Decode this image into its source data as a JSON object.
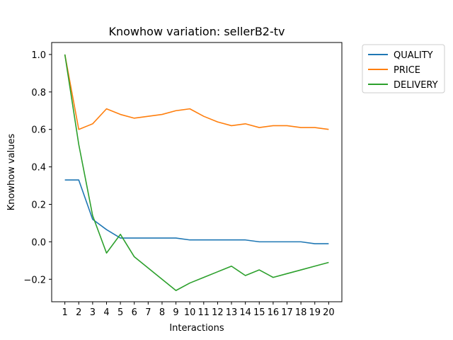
{
  "chart_data": {
    "type": "line",
    "title": "Knowhow variation: sellerB2-tv",
    "xlabel": "Interactions",
    "ylabel": "Knowhow values",
    "x": [
      1,
      2,
      3,
      4,
      5,
      6,
      7,
      8,
      9,
      10,
      11,
      12,
      13,
      14,
      15,
      16,
      17,
      18,
      19,
      20
    ],
    "xlim": [
      0.05,
      20.95
    ],
    "ylim": [
      -0.32,
      1.064
    ],
    "yticks": [
      -0.2,
      0.0,
      0.2,
      0.4,
      0.6,
      0.8,
      1.0
    ],
    "ytick_labels": [
      "−0.2",
      "0.0",
      "0.2",
      "0.4",
      "0.6",
      "0.8",
      "1.0"
    ],
    "grid": false,
    "legend_position": "outside-top-right",
    "series": [
      {
        "name": "QUALITY",
        "color": "#1f77b4",
        "values": [
          0.33,
          0.33,
          0.12,
          0.065,
          0.02,
          0.02,
          0.02,
          0.02,
          0.02,
          0.01,
          0.01,
          0.01,
          0.01,
          0.01,
          0.0,
          0.0,
          0.0,
          0.0,
          -0.01,
          -0.01
        ]
      },
      {
        "name": "PRICE",
        "color": "#ff7f0e",
        "values": [
          1.0,
          0.6,
          0.63,
          0.71,
          0.68,
          0.66,
          0.67,
          0.68,
          0.7,
          0.71,
          0.67,
          0.64,
          0.62,
          0.63,
          0.61,
          0.62,
          0.62,
          0.61,
          0.61,
          0.6
        ]
      },
      {
        "name": "DELIVERY",
        "color": "#2ca02c",
        "values": [
          1.0,
          0.52,
          0.14,
          -0.06,
          0.04,
          -0.08,
          -0.14,
          -0.2,
          -0.26,
          -0.22,
          -0.19,
          -0.16,
          -0.13,
          -0.18,
          -0.15,
          -0.19,
          -0.17,
          -0.15,
          -0.13,
          -0.11
        ]
      }
    ]
  }
}
